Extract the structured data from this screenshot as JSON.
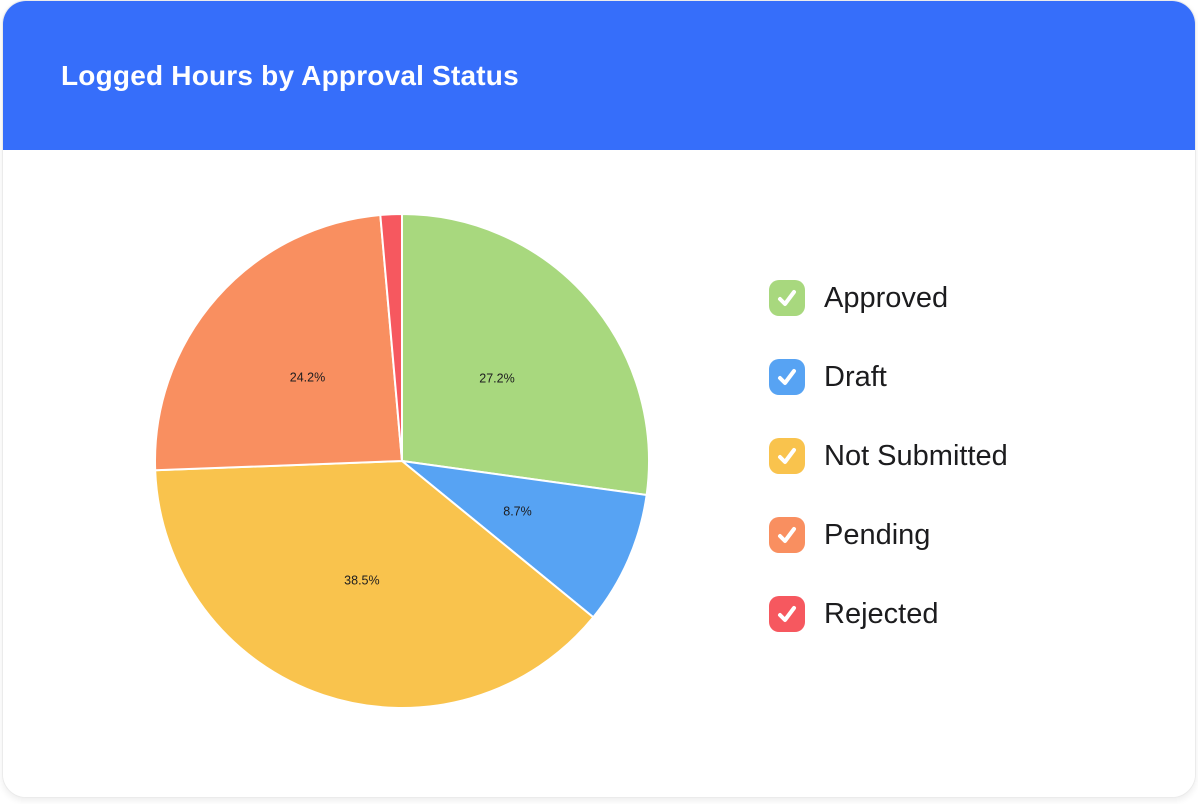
{
  "header": {
    "title": "Logged Hours by Approval Status"
  },
  "theme": {
    "header_bg": "#366efa",
    "card_bg": "#ffffff",
    "card_border": "#ebebeb",
    "title_color": "#ffffff",
    "pie_label_color": "#1d1d1f",
    "legend_text_color": "#1c1c1e",
    "slice_stroke": "#ffffff",
    "check_color": "#ffffff"
  },
  "chart_data": {
    "type": "pie",
    "title": "Logged Hours by Approval Status",
    "start_angle_deg": 0,
    "direction": "clockwise",
    "label_radius_ratio": 0.51,
    "legend_position": "right",
    "slices": [
      {
        "label": "Approved",
        "value_pct": 27.2,
        "display": "27.2%",
        "color": "#a8d87e",
        "label_visible": true
      },
      {
        "label": "Draft",
        "value_pct": 8.7,
        "display": "8.7%",
        "color": "#57a3f3",
        "label_visible": true
      },
      {
        "label": "Not Submitted",
        "value_pct": 38.5,
        "display": "38.5%",
        "color": "#f9c34d",
        "label_visible": true
      },
      {
        "label": "Pending",
        "value_pct": 24.2,
        "display": "24.2%",
        "color": "#f98f60",
        "label_visible": true
      },
      {
        "label": "Rejected",
        "value_pct": 1.4,
        "display": "",
        "color": "#f6585f",
        "label_visible": false
      }
    ]
  }
}
